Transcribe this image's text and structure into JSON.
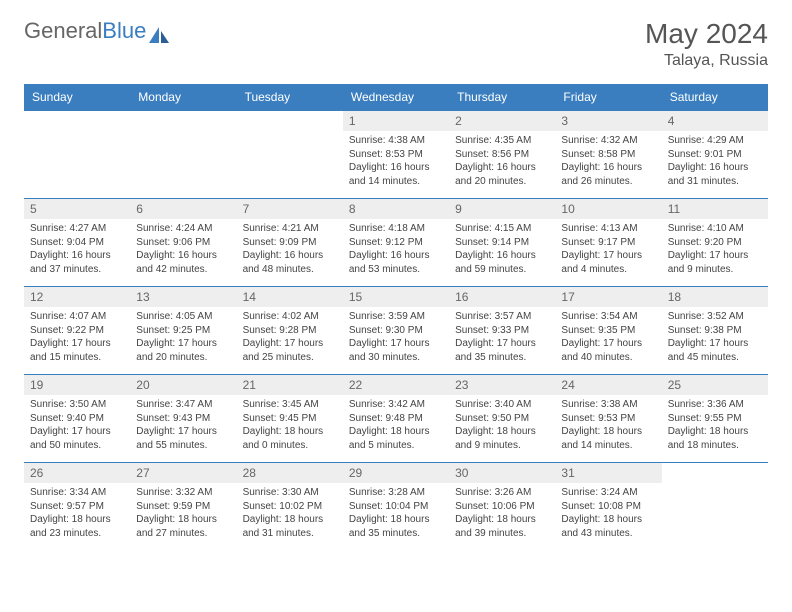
{
  "brand": {
    "part1": "General",
    "part2": "Blue"
  },
  "title": "May 2024",
  "location": "Talaya, Russia",
  "colors": {
    "header_bg": "#3a7ebf",
    "header_text": "#ffffff",
    "daynum_bg": "#eeeeee",
    "border": "#3a7ebf",
    "text": "#444444"
  },
  "layout": {
    "columns": 7,
    "rows": 5,
    "first_weekday_index": 3
  },
  "weekdays": [
    "Sunday",
    "Monday",
    "Tuesday",
    "Wednesday",
    "Thursday",
    "Friday",
    "Saturday"
  ],
  "days": [
    {
      "n": "1",
      "sr": "4:38 AM",
      "ss": "8:53 PM",
      "dl": "16 hours and 14 minutes."
    },
    {
      "n": "2",
      "sr": "4:35 AM",
      "ss": "8:56 PM",
      "dl": "16 hours and 20 minutes."
    },
    {
      "n": "3",
      "sr": "4:32 AM",
      "ss": "8:58 PM",
      "dl": "16 hours and 26 minutes."
    },
    {
      "n": "4",
      "sr": "4:29 AM",
      "ss": "9:01 PM",
      "dl": "16 hours and 31 minutes."
    },
    {
      "n": "5",
      "sr": "4:27 AM",
      "ss": "9:04 PM",
      "dl": "16 hours and 37 minutes."
    },
    {
      "n": "6",
      "sr": "4:24 AM",
      "ss": "9:06 PM",
      "dl": "16 hours and 42 minutes."
    },
    {
      "n": "7",
      "sr": "4:21 AM",
      "ss": "9:09 PM",
      "dl": "16 hours and 48 minutes."
    },
    {
      "n": "8",
      "sr": "4:18 AM",
      "ss": "9:12 PM",
      "dl": "16 hours and 53 minutes."
    },
    {
      "n": "9",
      "sr": "4:15 AM",
      "ss": "9:14 PM",
      "dl": "16 hours and 59 minutes."
    },
    {
      "n": "10",
      "sr": "4:13 AM",
      "ss": "9:17 PM",
      "dl": "17 hours and 4 minutes."
    },
    {
      "n": "11",
      "sr": "4:10 AM",
      "ss": "9:20 PM",
      "dl": "17 hours and 9 minutes."
    },
    {
      "n": "12",
      "sr": "4:07 AM",
      "ss": "9:22 PM",
      "dl": "17 hours and 15 minutes."
    },
    {
      "n": "13",
      "sr": "4:05 AM",
      "ss": "9:25 PM",
      "dl": "17 hours and 20 minutes."
    },
    {
      "n": "14",
      "sr": "4:02 AM",
      "ss": "9:28 PM",
      "dl": "17 hours and 25 minutes."
    },
    {
      "n": "15",
      "sr": "3:59 AM",
      "ss": "9:30 PM",
      "dl": "17 hours and 30 minutes."
    },
    {
      "n": "16",
      "sr": "3:57 AM",
      "ss": "9:33 PM",
      "dl": "17 hours and 35 minutes."
    },
    {
      "n": "17",
      "sr": "3:54 AM",
      "ss": "9:35 PM",
      "dl": "17 hours and 40 minutes."
    },
    {
      "n": "18",
      "sr": "3:52 AM",
      "ss": "9:38 PM",
      "dl": "17 hours and 45 minutes."
    },
    {
      "n": "19",
      "sr": "3:50 AM",
      "ss": "9:40 PM",
      "dl": "17 hours and 50 minutes."
    },
    {
      "n": "20",
      "sr": "3:47 AM",
      "ss": "9:43 PM",
      "dl": "17 hours and 55 minutes."
    },
    {
      "n": "21",
      "sr": "3:45 AM",
      "ss": "9:45 PM",
      "dl": "18 hours and 0 minutes."
    },
    {
      "n": "22",
      "sr": "3:42 AM",
      "ss": "9:48 PM",
      "dl": "18 hours and 5 minutes."
    },
    {
      "n": "23",
      "sr": "3:40 AM",
      "ss": "9:50 PM",
      "dl": "18 hours and 9 minutes."
    },
    {
      "n": "24",
      "sr": "3:38 AM",
      "ss": "9:53 PM",
      "dl": "18 hours and 14 minutes."
    },
    {
      "n": "25",
      "sr": "3:36 AM",
      "ss": "9:55 PM",
      "dl": "18 hours and 18 minutes."
    },
    {
      "n": "26",
      "sr": "3:34 AM",
      "ss": "9:57 PM",
      "dl": "18 hours and 23 minutes."
    },
    {
      "n": "27",
      "sr": "3:32 AM",
      "ss": "9:59 PM",
      "dl": "18 hours and 27 minutes."
    },
    {
      "n": "28",
      "sr": "3:30 AM",
      "ss": "10:02 PM",
      "dl": "18 hours and 31 minutes."
    },
    {
      "n": "29",
      "sr": "3:28 AM",
      "ss": "10:04 PM",
      "dl": "18 hours and 35 minutes."
    },
    {
      "n": "30",
      "sr": "3:26 AM",
      "ss": "10:06 PM",
      "dl": "18 hours and 39 minutes."
    },
    {
      "n": "31",
      "sr": "3:24 AM",
      "ss": "10:08 PM",
      "dl": "18 hours and 43 minutes."
    }
  ],
  "labels": {
    "sunrise": "Sunrise:",
    "sunset": "Sunset:",
    "daylight": "Daylight:"
  }
}
